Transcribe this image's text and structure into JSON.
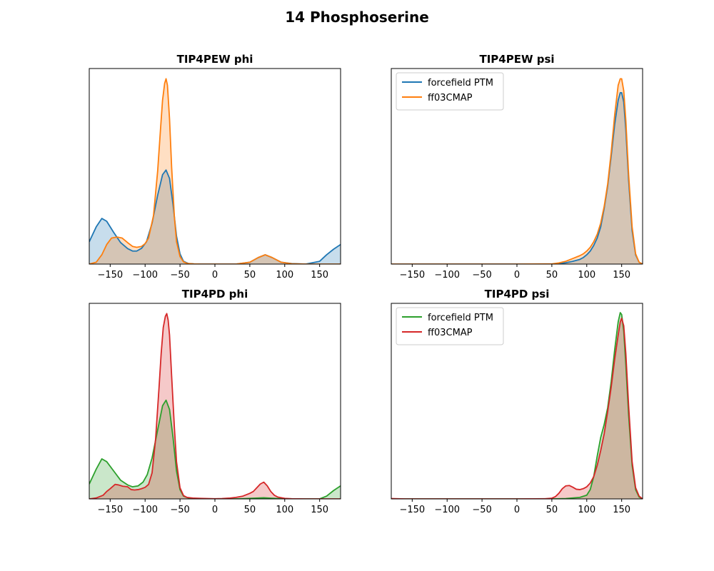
{
  "figure_title": "14 Phosphoserine",
  "chart_data": [
    {
      "type": "area",
      "title": "TIP4PEW phi",
      "xlim": [
        -180,
        180
      ],
      "ylim": [
        0,
        1.05
      ],
      "xticks": [
        -150,
        -100,
        -50,
        0,
        50,
        100,
        150
      ],
      "yticks_visible": false,
      "grid": false,
      "legend": null,
      "series": [
        {
          "color": "#1f77b4",
          "fill_alpha": 0.25,
          "x": [
            -180,
            -170,
            -162,
            -155,
            -145,
            -135,
            -125,
            -118,
            -112,
            -105,
            -98,
            -90,
            -82,
            -75,
            -70,
            -65,
            -60,
            -55,
            -50,
            -45,
            -38,
            -30,
            -20,
            0,
            30,
            50,
            62,
            72,
            82,
            95,
            110,
            130,
            150,
            160,
            170,
            180
          ],
          "y": [
            0.12,
            0.2,
            0.245,
            0.23,
            0.17,
            0.115,
            0.083,
            0.07,
            0.07,
            0.085,
            0.12,
            0.22,
            0.37,
            0.48,
            0.505,
            0.46,
            0.32,
            0.15,
            0.055,
            0.015,
            0.003,
            0.001,
            0.0,
            0.0,
            0.0,
            0.01,
            0.035,
            0.05,
            0.035,
            0.01,
            0.003,
            0.0,
            0.015,
            0.05,
            0.08,
            0.105
          ]
        },
        {
          "color": "#ff7f0e",
          "fill_alpha": 0.25,
          "x": [
            -180,
            -170,
            -162,
            -155,
            -148,
            -140,
            -133,
            -125,
            -118,
            -112,
            -105,
            -100,
            -95,
            -88,
            -82,
            -78,
            -75,
            -72,
            -70,
            -68,
            -65,
            -62,
            -58,
            -55,
            -50,
            -45,
            -40,
            -30,
            -20,
            0,
            30,
            50,
            62,
            72,
            82,
            95,
            110,
            130,
            150,
            170,
            180
          ],
          "y": [
            0.0,
            0.01,
            0.05,
            0.105,
            0.14,
            0.145,
            0.14,
            0.115,
            0.095,
            0.09,
            0.095,
            0.11,
            0.14,
            0.26,
            0.5,
            0.72,
            0.88,
            0.97,
            0.995,
            0.96,
            0.78,
            0.52,
            0.25,
            0.12,
            0.04,
            0.012,
            0.004,
            0.001,
            0.0,
            0.0,
            0.0,
            0.01,
            0.035,
            0.05,
            0.035,
            0.01,
            0.002,
            0.0,
            0.0,
            0.0,
            0.0
          ]
        }
      ]
    },
    {
      "type": "area",
      "title": "TIP4PEW psi",
      "xlim": [
        -180,
        180
      ],
      "ylim": [
        0,
        1.05
      ],
      "xticks": [
        -150,
        -100,
        -50,
        0,
        50,
        100,
        150
      ],
      "yticks_visible": false,
      "grid": false,
      "legend": "upper left",
      "series": [
        {
          "name": "forcefield PTM",
          "color": "#1f77b4",
          "fill_alpha": 0.25,
          "x": [
            -180,
            -100,
            0,
            50,
            60,
            70,
            80,
            90,
            95,
            100,
            105,
            110,
            115,
            120,
            125,
            130,
            135,
            140,
            145,
            148,
            150,
            153,
            156,
            160,
            165,
            170,
            175,
            180
          ],
          "y": [
            0.0,
            0.0,
            0.0,
            0.0,
            0.003,
            0.007,
            0.015,
            0.025,
            0.035,
            0.05,
            0.07,
            0.1,
            0.14,
            0.2,
            0.3,
            0.42,
            0.58,
            0.75,
            0.88,
            0.92,
            0.92,
            0.87,
            0.72,
            0.45,
            0.18,
            0.05,
            0.01,
            0.0
          ]
        },
        {
          "name": "ff03CMAP",
          "color": "#ff7f0e",
          "fill_alpha": 0.25,
          "x": [
            -180,
            -100,
            0,
            50,
            60,
            70,
            80,
            90,
            95,
            100,
            105,
            110,
            115,
            120,
            125,
            130,
            135,
            140,
            145,
            148,
            150,
            153,
            156,
            160,
            165,
            170,
            175,
            180
          ],
          "y": [
            0.0,
            0.0,
            0.0,
            0.001,
            0.006,
            0.015,
            0.03,
            0.045,
            0.055,
            0.07,
            0.09,
            0.12,
            0.16,
            0.22,
            0.31,
            0.43,
            0.6,
            0.8,
            0.96,
            0.995,
            0.995,
            0.93,
            0.77,
            0.48,
            0.2,
            0.055,
            0.01,
            0.0
          ]
        }
      ]
    },
    {
      "type": "area",
      "title": "TIP4PD phi",
      "xlim": [
        -180,
        180
      ],
      "ylim": [
        0,
        1.05
      ],
      "xticks": [
        -150,
        -100,
        -50,
        0,
        50,
        100,
        150
      ],
      "yticks_visible": false,
      "grid": false,
      "legend": null,
      "series": [
        {
          "color": "#2ca02c",
          "fill_alpha": 0.25,
          "x": [
            -180,
            -170,
            -162,
            -155,
            -145,
            -135,
            -125,
            -118,
            -110,
            -103,
            -97,
            -90,
            -82,
            -75,
            -70,
            -65,
            -60,
            -55,
            -50,
            -45,
            -38,
            -30,
            -20,
            0,
            30,
            50,
            70,
            100,
            130,
            150,
            160,
            170,
            180
          ],
          "y": [
            0.08,
            0.16,
            0.215,
            0.2,
            0.15,
            0.1,
            0.075,
            0.065,
            0.07,
            0.09,
            0.13,
            0.22,
            0.37,
            0.5,
            0.53,
            0.48,
            0.33,
            0.15,
            0.05,
            0.015,
            0.005,
            0.002,
            0.0,
            0.0,
            0.0,
            0.003,
            0.006,
            0.0,
            0.0,
            0.0,
            0.015,
            0.045,
            0.07
          ]
        },
        {
          "color": "#d62728",
          "fill_alpha": 0.25,
          "x": [
            -180,
            -170,
            -160,
            -155,
            -150,
            -143,
            -138,
            -132,
            -125,
            -120,
            -115,
            -110,
            -105,
            -100,
            -95,
            -90,
            -85,
            -80,
            -77,
            -74,
            -71,
            -69,
            -67,
            -65,
            -62,
            -58,
            -55,
            -50,
            -45,
            -40,
            -30,
            -20,
            -10,
            0,
            10,
            20,
            30,
            40,
            50,
            55,
            60,
            65,
            70,
            75,
            80,
            85,
            90,
            100,
            110,
            130,
            150,
            170,
            180
          ],
          "y": [
            0.0,
            0.005,
            0.02,
            0.04,
            0.055,
            0.078,
            0.075,
            0.068,
            0.065,
            0.05,
            0.048,
            0.05,
            0.055,
            0.062,
            0.078,
            0.14,
            0.32,
            0.6,
            0.78,
            0.92,
            0.98,
            0.995,
            0.96,
            0.88,
            0.66,
            0.38,
            0.2,
            0.06,
            0.018,
            0.008,
            0.004,
            0.003,
            0.002,
            0.001,
            0.002,
            0.004,
            0.008,
            0.015,
            0.03,
            0.04,
            0.06,
            0.08,
            0.09,
            0.07,
            0.04,
            0.02,
            0.01,
            0.003,
            0.001,
            0.0,
            0.0,
            0.0,
            0.0
          ]
        }
      ]
    },
    {
      "type": "area",
      "title": "TIP4PD psi",
      "xlim": [
        -180,
        180
      ],
      "ylim": [
        0,
        1.05
      ],
      "xticks": [
        -150,
        -100,
        -50,
        0,
        50,
        100,
        150
      ],
      "yticks_visible": false,
      "grid": false,
      "legend": "upper left",
      "series": [
        {
          "name": "forcefield PTM",
          "color": "#2ca02c",
          "fill_alpha": 0.25,
          "x": [
            -180,
            -100,
            0,
            50,
            70,
            90,
            100,
            105,
            110,
            115,
            120,
            125,
            130,
            135,
            140,
            145,
            148,
            150,
            153,
            156,
            160,
            165,
            170,
            175,
            180
          ],
          "y": [
            0.0,
            0.0,
            0.0,
            0.0,
            0.002,
            0.008,
            0.02,
            0.05,
            0.12,
            0.23,
            0.33,
            0.4,
            0.49,
            0.63,
            0.8,
            0.95,
            1.0,
            0.99,
            0.9,
            0.72,
            0.45,
            0.18,
            0.05,
            0.01,
            0.0
          ]
        },
        {
          "name": "ff03CMAP",
          "color": "#d62728",
          "fill_alpha": 0.25,
          "x": [
            -180,
            -160,
            -100,
            0,
            40,
            50,
            55,
            60,
            65,
            70,
            75,
            80,
            85,
            90,
            95,
            100,
            105,
            110,
            115,
            120,
            125,
            130,
            135,
            140,
            145,
            148,
            150,
            153,
            156,
            160,
            165,
            170,
            175,
            180
          ],
          "y": [
            0.002,
            0.0,
            0.0,
            0.0,
            0.001,
            0.004,
            0.012,
            0.03,
            0.055,
            0.07,
            0.072,
            0.063,
            0.052,
            0.05,
            0.055,
            0.065,
            0.085,
            0.12,
            0.18,
            0.26,
            0.35,
            0.47,
            0.6,
            0.75,
            0.88,
            0.95,
            0.97,
            0.93,
            0.78,
            0.5,
            0.2,
            0.06,
            0.015,
            0.0
          ]
        }
      ]
    }
  ]
}
